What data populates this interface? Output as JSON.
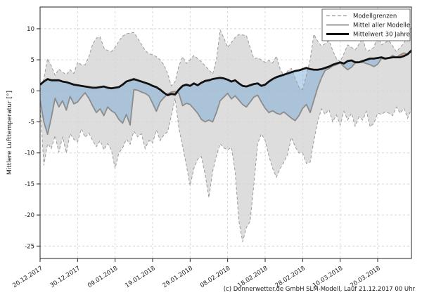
{
  "figure": {
    "ylabel": "Mittlere Lufttemperatur [°]",
    "footer": "(c) Donnerwetter.de GmbH SLM-Modell, Lauf 21.12.2017 00 Uhr"
  },
  "legend": {
    "position": "top-right",
    "items": [
      {
        "label": "Modellgrenzen",
        "style": "dashed-gray"
      },
      {
        "label": "Mittel aller Modelle",
        "style": "solid-gray"
      },
      {
        "label": "Mittelwert 30 Jahre",
        "style": "solid-black"
      }
    ]
  },
  "colors": {
    "band_fill": "#d4d4d4",
    "bound_line": "#9a9a9a",
    "model_mean_line": "#8c8c8c",
    "climate_mean_line": "#111111",
    "below_normal_fill": "#6ea5d2",
    "above_normal_fill": "#e67355",
    "grid": "#cfcfcf",
    "axis": "#222222"
  },
  "chart_data": {
    "type": "line",
    "title": "",
    "xlabel": "",
    "ylabel": "Mittlere Lufttemperatur [°]",
    "ylim": [
      -27,
      13.5
    ],
    "yticks": [
      10,
      5,
      0,
      -5,
      -10,
      -15,
      -20,
      -25
    ],
    "grid": true,
    "legend_position": "top-right",
    "x_unit": "days, 20.12.2017 bis 29.03.2018",
    "n_days": 100,
    "x_ticks": [
      {
        "day": 0,
        "label": "20.12.2017"
      },
      {
        "day": 10,
        "label": "30.12.2017"
      },
      {
        "day": 20,
        "label": "09.01.2018"
      },
      {
        "day": 30,
        "label": "19.01.2018"
      },
      {
        "day": 40,
        "label": "29.01.2018"
      },
      {
        "day": 50,
        "label": "08.02.2018"
      },
      {
        "day": 60,
        "label": "18.02.2018"
      },
      {
        "day": 70,
        "label": "28.02.2018"
      },
      {
        "day": 80,
        "label": "10.03.2018"
      },
      {
        "day": 90,
        "label": "20.03.2018"
      }
    ],
    "fills": {
      "band": "Modellgrenzen: Flaeche zwischen oberer und unterer Grenze (grau)",
      "below_normal": "Mittel aller Modelle unter Mittelwert 30 Jahre (blau)",
      "above_normal": "Mittel aller Modelle ueber Mittelwert 30 Jahre (rot)"
    },
    "series": [
      {
        "name": "Modellgrenzen (obere Grenze)",
        "role": "upper_bound",
        "values": [
          0.0,
          2.0,
          5.2,
          4.0,
          2.5,
          3.5,
          3.0,
          2.6,
          3.4,
          2.8,
          4.6,
          4.2,
          4.2,
          5.5,
          7.5,
          8.5,
          8.7,
          6.9,
          6.5,
          6.3,
          7.0,
          8.0,
          8.8,
          9.2,
          9.3,
          9.4,
          8.5,
          7.5,
          6.5,
          6.0,
          5.8,
          5.5,
          5.0,
          4.2,
          2.8,
          0.8,
          1.5,
          4.0,
          5.5,
          4.4,
          5.0,
          5.7,
          5.2,
          4.7,
          4.0,
          3.4,
          2.7,
          5.0,
          9.8,
          8.5,
          7.0,
          7.8,
          8.6,
          9.1,
          9.0,
          8.9,
          7.0,
          5.2,
          5.3,
          5.0,
          4.6,
          4.9,
          4.5,
          5.6,
          3.5,
          2.4,
          3.2,
          3.6,
          2.0,
          0.6,
          0.2,
          2.6,
          5.0,
          9.1,
          8.0,
          7.2,
          7.6,
          8.1,
          6.5,
          5.2,
          4.7,
          6.0,
          7.4,
          7.0,
          6.6,
          7.5,
          8.5,
          6.3,
          6.6,
          7.0,
          8.9,
          7.4,
          7.8,
          8.1,
          7.2,
          6.3,
          7.0,
          7.7,
          9.2,
          10.2
        ]
      },
      {
        "name": "Modellgrenzen (untere Grenze)",
        "role": "lower_bound",
        "values": [
          -2.3,
          -12.0,
          -8.5,
          -9.3,
          -7.2,
          -9.9,
          -7.4,
          -10.0,
          -6.9,
          -7.8,
          -8.2,
          -6.1,
          -7.5,
          -6.8,
          -8.0,
          -9.0,
          -8.0,
          -9.5,
          -8.5,
          -9.5,
          -12.5,
          -10.0,
          -9.2,
          -7.8,
          -8.6,
          -6.5,
          -7.4,
          -6.9,
          -9.3,
          -8.0,
          -8.4,
          -6.3,
          -8.0,
          -7.1,
          -6.6,
          -4.0,
          -1.2,
          -6.0,
          -9.0,
          -12.0,
          -15.3,
          -12.5,
          -11.0,
          -10.6,
          -13.5,
          -17.2,
          -13.0,
          -10.5,
          -8.5,
          -9.2,
          -9.5,
          -9.1,
          -13.0,
          -21.0,
          -24.3,
          -22.0,
          -21.0,
          -15.0,
          -8.5,
          -6.9,
          -8.0,
          -10.5,
          -12.5,
          -13.9,
          -12.5,
          -11.5,
          -10.2,
          -7.5,
          -9.0,
          -10.0,
          -10.0,
          -11.7,
          -11.5,
          -8.0,
          -5.0,
          -2.9,
          -3.8,
          -3.0,
          -5.0,
          -3.9,
          -5.5,
          -3.3,
          -4.7,
          -3.6,
          -5.7,
          -4.2,
          -4.7,
          -3.3,
          -5.8,
          -5.2,
          -3.6,
          -3.8,
          -3.4,
          -3.6,
          -4.0,
          -2.6,
          -3.6,
          -2.8,
          -4.4,
          -2.9
        ]
      },
      {
        "name": "Mittel aller Modelle",
        "role": "model_mean",
        "values": [
          -1.5,
          -5.0,
          -7.0,
          -4.3,
          -1.2,
          -2.6,
          -1.6,
          -3.1,
          -0.9,
          -2.1,
          -1.8,
          -1.0,
          -0.3,
          -1.2,
          -2.4,
          -3.5,
          -2.9,
          -4.0,
          -2.6,
          -3.2,
          -3.6,
          -4.6,
          -5.2,
          -3.8,
          -5.5,
          0.2,
          0.1,
          -0.2,
          -0.4,
          -0.8,
          -2.0,
          -3.3,
          -1.8,
          -1.1,
          -0.5,
          -0.2,
          -0.1,
          -0.4,
          -2.4,
          -2.0,
          -2.2,
          -2.9,
          -3.6,
          -4.6,
          -5.0,
          -4.7,
          -5.0,
          -3.5,
          -1.6,
          -1.0,
          -0.4,
          -1.3,
          -0.8,
          -1.5,
          -2.2,
          -2.6,
          -1.8,
          -1.0,
          -0.7,
          -1.8,
          -2.8,
          -3.5,
          -3.2,
          -3.6,
          -3.8,
          -3.4,
          -3.9,
          -4.4,
          -4.8,
          -4.0,
          -2.8,
          -2.2,
          -3.5,
          -1.5,
          0.5,
          2.1,
          3.3,
          3.6,
          4.0,
          4.2,
          4.5,
          3.9,
          3.4,
          3.8,
          4.5,
          4.6,
          4.6,
          4.4,
          4.2,
          3.9,
          4.3,
          5.2,
          5.1,
          5.3,
          5.7,
          5.4,
          5.8,
          6.1,
          5.9,
          6.4
        ]
      },
      {
        "name": "Mittelwert 30 Jahre",
        "role": "climate_mean",
        "values": [
          1.0,
          1.5,
          1.9,
          1.7,
          1.7,
          1.7,
          1.5,
          1.4,
          1.2,
          1.0,
          0.9,
          0.8,
          0.7,
          0.6,
          0.5,
          0.5,
          0.6,
          0.7,
          0.5,
          0.4,
          0.5,
          0.6,
          1.0,
          1.5,
          1.7,
          1.9,
          1.7,
          1.5,
          1.3,
          1.1,
          0.8,
          0.6,
          0.2,
          -0.3,
          -0.7,
          -0.5,
          -0.6,
          0.2,
          0.8,
          1.0,
          0.8,
          1.2,
          0.9,
          1.3,
          1.6,
          1.7,
          1.9,
          2.0,
          2.1,
          2.0,
          1.8,
          1.5,
          1.7,
          1.2,
          0.8,
          0.7,
          0.9,
          1.1,
          1.2,
          0.8,
          1.0,
          1.5,
          1.9,
          2.2,
          2.4,
          2.6,
          2.8,
          3.0,
          3.2,
          3.3,
          3.5,
          3.7,
          3.5,
          3.4,
          3.4,
          3.5,
          3.7,
          3.9,
          4.2,
          4.4,
          4.6,
          4.4,
          4.8,
          4.9,
          4.6,
          4.6,
          4.8,
          5.0,
          5.2,
          5.2,
          5.3,
          5.4,
          5.2,
          5.3,
          5.4,
          5.4,
          5.4,
          5.6,
          5.9,
          6.5
        ]
      }
    ]
  }
}
